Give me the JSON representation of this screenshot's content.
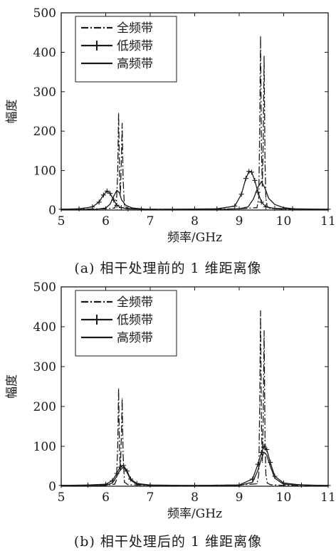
{
  "chart_data": [
    {
      "type": "line",
      "caption": "(a) 相干处理前的 1 维距离像",
      "xlabel": "频率/GHz",
      "ylabel": "幅度",
      "xlim": [
        5,
        11
      ],
      "ylim": [
        0,
        500
      ],
      "xticks": [
        "5",
        "6",
        "7",
        "8",
        "9",
        "10",
        "11"
      ],
      "yticks": [
        "0",
        "100",
        "200",
        "300",
        "400",
        "500"
      ],
      "grid": false,
      "legend_position": "top-left",
      "series": [
        {
          "name": "全频带",
          "style": "dash-dot",
          "color": "#1a1a1a",
          "x": [
            5.0,
            6.0,
            6.2,
            6.24,
            6.27,
            6.29,
            6.31,
            6.33,
            6.35,
            6.37,
            6.39,
            6.42,
            6.5,
            7.0,
            8.0,
            9.0,
            9.4,
            9.44,
            9.46,
            9.48,
            9.5,
            9.52,
            9.54,
            9.56,
            9.58,
            9.6,
            9.63,
            9.7,
            10.0,
            11.0
          ],
          "y": [
            2,
            3,
            5,
            15,
            100,
            245,
            90,
            40,
            120,
            220,
            80,
            10,
            4,
            2,
            2,
            3,
            6,
            30,
            200,
            440,
            150,
            60,
            170,
            390,
            120,
            30,
            8,
            4,
            2,
            2
          ]
        },
        {
          "name": "低频带",
          "style": "line-plus",
          "color": "#1a1a1a",
          "x": [
            5.0,
            5.4,
            5.7,
            5.85,
            5.95,
            6.03,
            6.1,
            6.18,
            6.25,
            6.35,
            6.5,
            6.8,
            7.5,
            8.5,
            8.9,
            9.05,
            9.15,
            9.22,
            9.28,
            9.35,
            9.42,
            9.5,
            9.6,
            9.8,
            10.2,
            11.0
          ],
          "y": [
            2,
            3,
            8,
            20,
            38,
            48,
            42,
            25,
            12,
            6,
            3,
            2,
            2,
            3,
            10,
            40,
            80,
            98,
            96,
            75,
            45,
            20,
            8,
            4,
            3,
            2
          ]
        },
        {
          "name": "高频带",
          "style": "solid",
          "color": "#1a1a1a",
          "x": [
            5.0,
            5.8,
            6.0,
            6.1,
            6.18,
            6.25,
            6.3,
            6.36,
            6.45,
            6.6,
            6.9,
            7.5,
            8.5,
            9.0,
            9.2,
            9.32,
            9.42,
            9.5,
            9.58,
            9.66,
            9.8,
            10.0,
            10.3,
            11.0
          ],
          "y": [
            1,
            2,
            5,
            15,
            35,
            50,
            45,
            25,
            12,
            5,
            2,
            1,
            1,
            3,
            8,
            28,
            58,
            72,
            55,
            30,
            14,
            6,
            2,
            1
          ]
        }
      ]
    },
    {
      "type": "line",
      "caption": "(b) 相干处理后的 1 维距离像",
      "xlabel": "频率/GHz",
      "ylabel": "幅度",
      "xlim": [
        5,
        11
      ],
      "ylim": [
        0,
        500
      ],
      "xticks": [
        "5",
        "6",
        "7",
        "8",
        "9",
        "10",
        "11"
      ],
      "yticks": [
        "0",
        "100",
        "200",
        "300",
        "400",
        "500"
      ],
      "grid": false,
      "legend_position": "top-left",
      "series": [
        {
          "name": "全频带",
          "style": "dash-dot",
          "color": "#1a1a1a",
          "x": [
            5.0,
            6.0,
            6.2,
            6.24,
            6.27,
            6.29,
            6.31,
            6.33,
            6.35,
            6.37,
            6.39,
            6.42,
            6.5,
            7.0,
            8.0,
            9.0,
            9.4,
            9.44,
            9.46,
            9.48,
            9.5,
            9.52,
            9.54,
            9.56,
            9.58,
            9.6,
            9.63,
            9.7,
            10.0,
            11.0
          ],
          "y": [
            2,
            3,
            5,
            15,
            100,
            245,
            90,
            40,
            120,
            220,
            80,
            10,
            4,
            2,
            2,
            3,
            6,
            30,
            200,
            440,
            150,
            60,
            170,
            390,
            120,
            30,
            8,
            4,
            2,
            2
          ]
        },
        {
          "name": "低频带",
          "style": "line-plus",
          "color": "#1a1a1a",
          "x": [
            5.0,
            5.6,
            6.0,
            6.15,
            6.25,
            6.32,
            6.4,
            6.48,
            6.56,
            6.7,
            7.0,
            8.0,
            9.0,
            9.3,
            9.42,
            9.5,
            9.56,
            9.62,
            9.7,
            9.8,
            10.0,
            10.4,
            11.0
          ],
          "y": [
            2,
            3,
            5,
            14,
            32,
            48,
            52,
            38,
            18,
            7,
            3,
            2,
            3,
            18,
            55,
            85,
            100,
            92,
            60,
            25,
            8,
            3,
            2
          ]
        },
        {
          "name": "高频带",
          "style": "solid",
          "color": "#1a1a1a",
          "x": [
            5.0,
            6.0,
            6.15,
            6.25,
            6.32,
            6.4,
            6.48,
            6.56,
            6.7,
            7.0,
            8.0,
            9.0,
            9.3,
            9.42,
            9.5,
            9.56,
            9.62,
            9.7,
            9.8,
            10.0,
            11.0
          ],
          "y": [
            1,
            2,
            8,
            25,
            40,
            48,
            35,
            15,
            5,
            2,
            1,
            2,
            10,
            40,
            70,
            85,
            78,
            50,
            20,
            5,
            1
          ]
        }
      ]
    }
  ]
}
